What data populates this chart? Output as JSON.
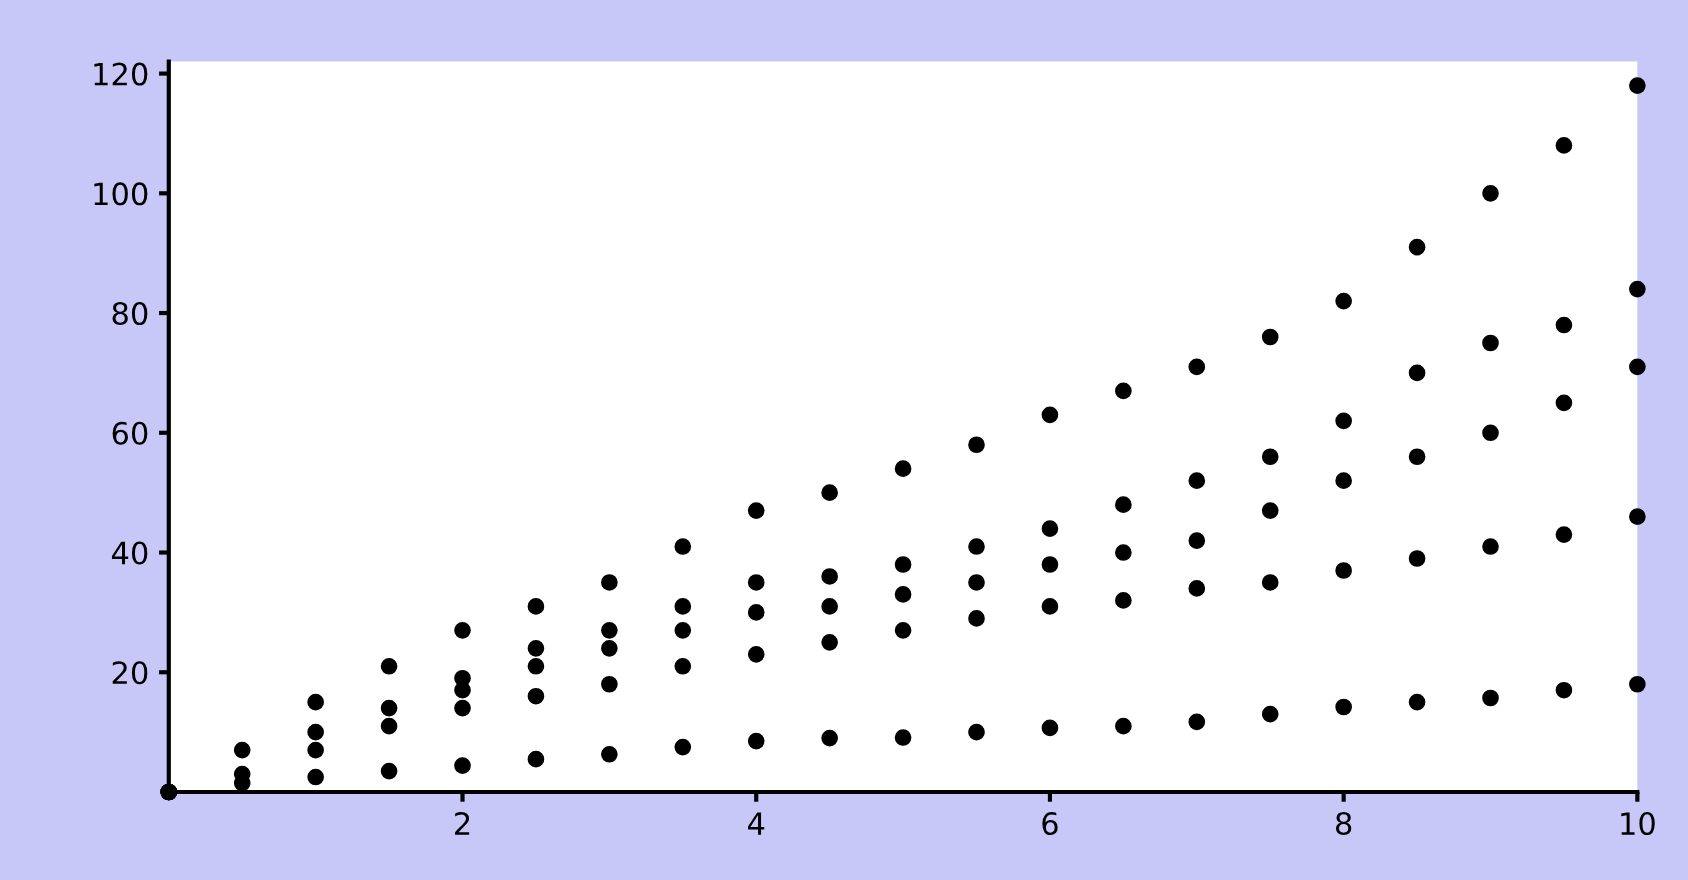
{
  "chart_data": {
    "type": "scatter",
    "marker": "circle",
    "grid": false,
    "legend": false,
    "xlim": [
      0,
      10
    ],
    "ylim": [
      0,
      122
    ],
    "xticks": [
      2,
      4,
      6,
      8,
      10
    ],
    "yticks": [
      20,
      40,
      60,
      80,
      100,
      120
    ],
    "series": [
      {
        "color": "#000000",
        "x": [
          0,
          0.5,
          1,
          1.5,
          2,
          2.5,
          3,
          3.5,
          4,
          4.5,
          5,
          5.5,
          6,
          6.5,
          7,
          7.5,
          8,
          8.5,
          9,
          9.5,
          10
        ],
        "values": [
          0,
          7,
          15,
          21,
          27,
          31,
          35,
          41,
          47,
          50,
          54,
          58,
          63,
          67,
          71,
          76,
          82,
          91,
          100,
          108,
          118
        ]
      },
      {
        "color": "#000000",
        "x": [
          0,
          0.5,
          1,
          1.5,
          2,
          2.5,
          3,
          3.5,
          4,
          4.5,
          5,
          5.5,
          6,
          6.5,
          7,
          7.5,
          8,
          8.5,
          9,
          9.5,
          10
        ],
        "values": [
          0,
          null,
          null,
          null,
          19,
          24,
          27,
          31,
          35,
          36,
          38,
          41,
          44,
          48,
          52,
          56,
          62,
          70,
          75,
          78,
          84
        ]
      },
      {
        "color": "#000000",
        "x": [
          0,
          0.5,
          1,
          1.5,
          2,
          2.5,
          3,
          3.5,
          4,
          4.5,
          5,
          5.5,
          6,
          6.5,
          7,
          7.5,
          8,
          8.5,
          9,
          9.5,
          10
        ],
        "values": [
          0,
          null,
          10,
          14,
          17,
          21,
          24,
          27,
          30,
          31,
          33,
          35,
          38,
          40,
          42,
          47,
          52,
          56,
          60,
          65,
          71
        ]
      },
      {
        "color": "#000000",
        "x": [
          0,
          0.5,
          1,
          1.5,
          2,
          2.5,
          3,
          3.5,
          4,
          4.5,
          5,
          5.5,
          6,
          6.5,
          7,
          7.5,
          8,
          8.5,
          9,
          9.5,
          10
        ],
        "values": [
          0,
          3,
          7,
          11,
          14,
          16,
          18,
          21,
          23,
          25,
          27,
          29,
          31,
          32,
          34,
          35,
          37,
          39,
          41,
          43,
          46
        ]
      },
      {
        "color": "#000000",
        "x": [
          0,
          0.5,
          1,
          1.5,
          2,
          2.5,
          3,
          3.5,
          4,
          4.5,
          5,
          5.5,
          6,
          6.5,
          7,
          7.5,
          8,
          8.5,
          9,
          9.5,
          10
        ],
        "values": [
          0,
          1.5,
          2.5,
          3.5,
          4.4,
          5.5,
          6.3,
          7.5,
          8.5,
          9,
          9.1,
          10,
          10.7,
          11,
          11.7,
          13,
          14.2,
          15,
          15.7,
          17,
          18
        ]
      }
    ]
  }
}
